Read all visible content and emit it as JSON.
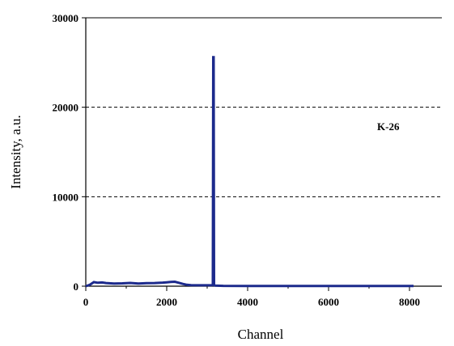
{
  "chart_data": {
    "type": "line",
    "xlabel": "Channel",
    "ylabel": "Intensity, a.u.",
    "xlim": [
      0,
      8800
    ],
    "ylim": [
      0,
      30000
    ],
    "x_ticks": [
      0,
      2000,
      4000,
      6000,
      8000
    ],
    "x_tick_labels": [
      "0",
      "2000",
      "4000",
      "6000",
      "8000"
    ],
    "y_ticks": [
      0,
      10000,
      20000,
      30000
    ],
    "y_tick_labels": [
      "0",
      "10000",
      "20000",
      "30000"
    ],
    "grid": "horizontal dashed at 10000 and 20000",
    "annotation": "K-26",
    "series_color": "#1c2a8c",
    "series": [
      {
        "x": [
          0,
          100,
          200,
          300,
          400,
          500,
          700,
          900,
          1100,
          1300,
          1500,
          1700,
          1900,
          2000,
          2100,
          2200,
          2300,
          2400,
          2500,
          2600,
          2800,
          3000,
          3100,
          3140,
          3150,
          3160,
          3170,
          3200,
          3400,
          4000,
          5000,
          6000,
          7000,
          8000,
          8100
        ],
        "y": [
          0,
          150,
          450,
          380,
          420,
          350,
          300,
          320,
          360,
          300,
          330,
          350,
          400,
          430,
          470,
          500,
          380,
          250,
          150,
          120,
          100,
          100,
          100,
          120,
          25600,
          25600,
          120,
          60,
          40,
          30,
          30,
          30,
          30,
          30,
          20
        ]
      }
    ]
  }
}
